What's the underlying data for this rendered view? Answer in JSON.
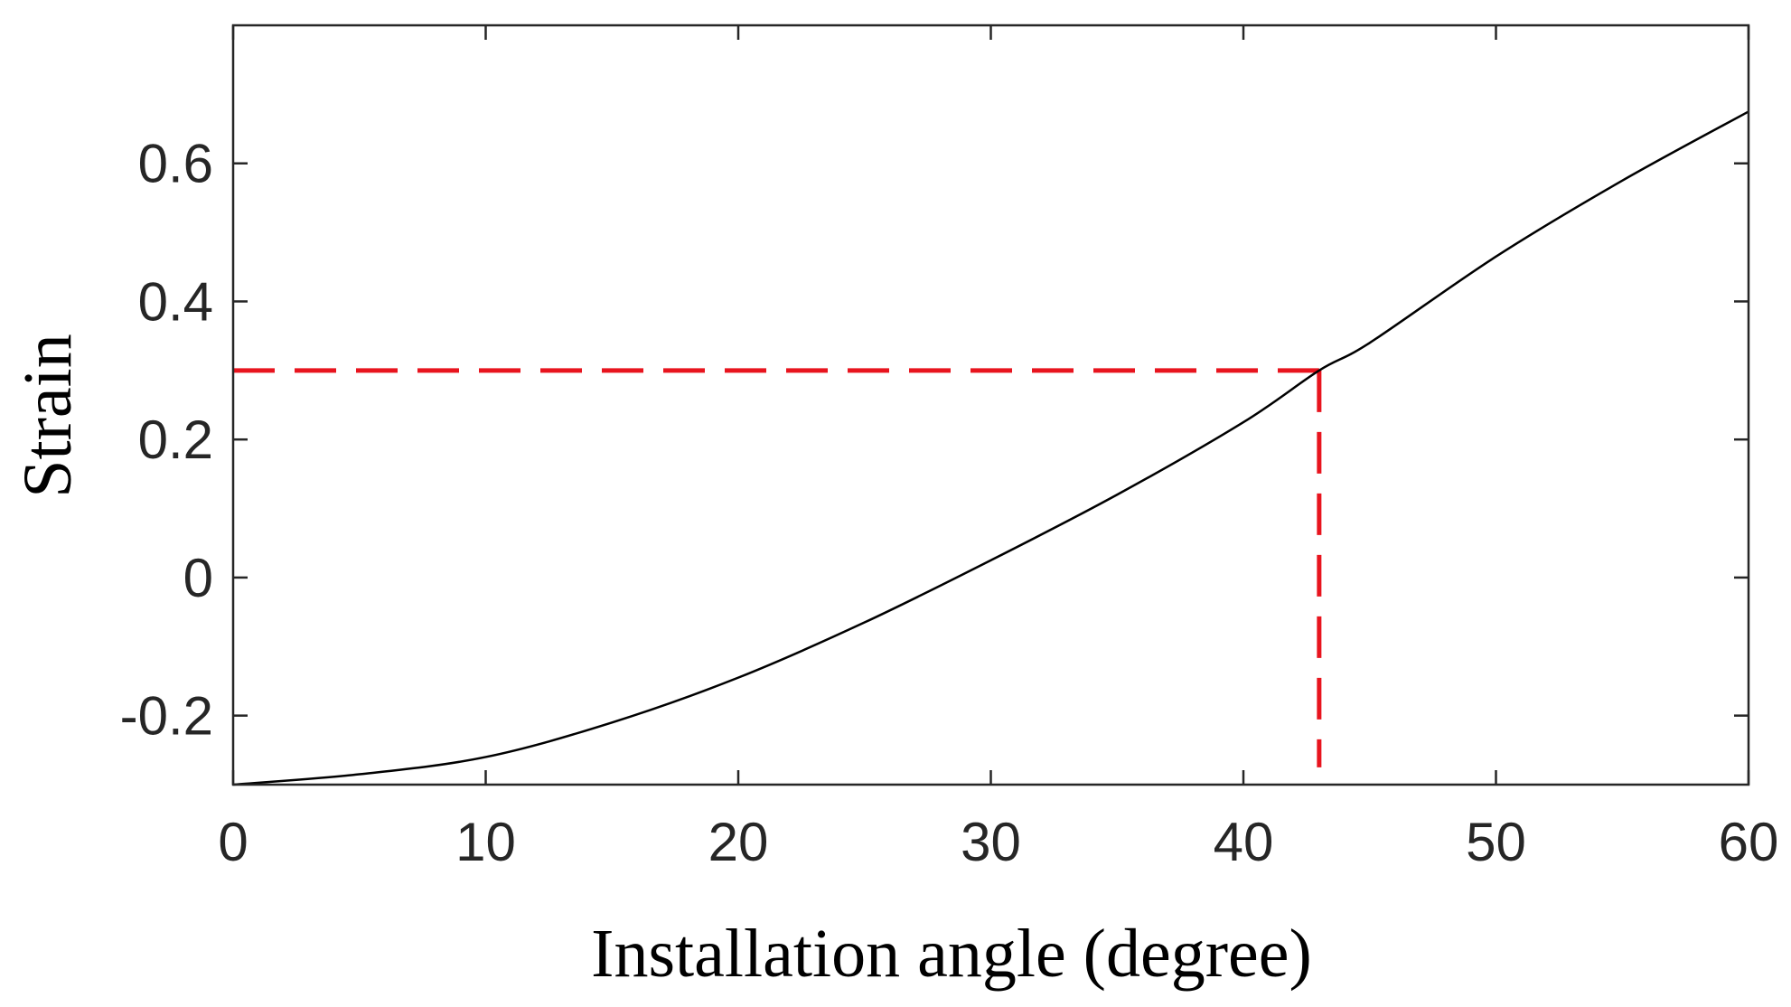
{
  "chart_data": {
    "type": "line",
    "title": "",
    "xlabel": "Installation angle (degree)",
    "ylabel": "Strain",
    "xlim": [
      0,
      60
    ],
    "ylim": [
      -0.3,
      0.8
    ],
    "xticks": [
      0,
      10,
      20,
      30,
      40,
      50,
      60
    ],
    "yticks": [
      -0.2,
      0,
      0.2,
      0.4,
      0.6
    ],
    "xtick_labels": [
      "0",
      "10",
      "20",
      "30",
      "40",
      "50",
      "60"
    ],
    "ytick_labels": [
      "-0.2",
      "0",
      "0.2",
      "0.4",
      "0.6"
    ],
    "grid": false,
    "series": [
      {
        "color": "#000000",
        "x": [
          0,
          5,
          10,
          15,
          20,
          25,
          30,
          35,
          40,
          43,
          45,
          50,
          55,
          60
        ],
        "y": [
          -0.3,
          -0.285,
          -0.26,
          -0.21,
          -0.145,
          -0.065,
          0.025,
          0.12,
          0.225,
          0.3,
          0.34,
          0.465,
          0.575,
          0.675
        ]
      }
    ],
    "annotations": [
      {
        "type": "hline-dashed",
        "y": 0.3,
        "x_from": 0,
        "x_to": 43,
        "color": "#e8141e"
      },
      {
        "type": "vline-dashed",
        "x": 43,
        "y_from": -0.275,
        "y_to": 0.3,
        "color": "#e8141e"
      }
    ]
  }
}
